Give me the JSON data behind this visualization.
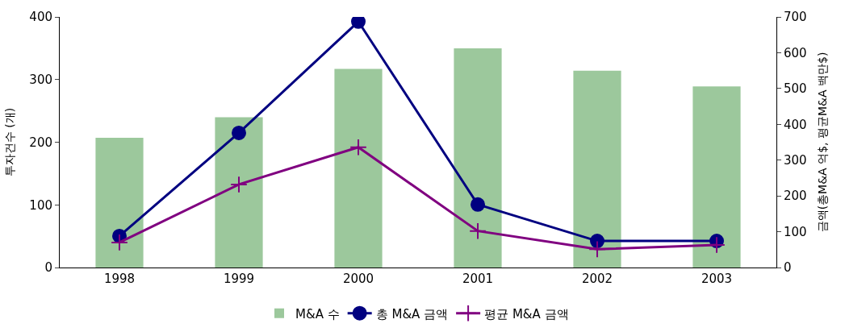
{
  "chart_data": {
    "type": "bar",
    "ylabel": "투자건수 (개)",
    "y2label": "금액(총M&A 억$, 평균M&A 백만$)",
    "categories": [
      "1998",
      "1999",
      "2000",
      "2001",
      "2002",
      "2003"
    ],
    "series": [
      {
        "name": "M&A 수",
        "color": "#9cc89c",
        "values": [
          207,
          240,
          317,
          350,
          314,
          289
        ]
      },
      {
        "name": "총 M&A 금액",
        "type": "line",
        "axis": "y2",
        "color": "#000080",
        "marker": "circle",
        "values": [
          88,
          376,
          687,
          176,
          74,
          74
        ]
      },
      {
        "name": "평균 M&A 금액",
        "type": "line",
        "axis": "y2",
        "color": "#800080",
        "marker": "cross",
        "values": [
          70,
          232,
          336,
          102,
          51,
          63
        ]
      }
    ],
    "ylim": [
      0,
      400
    ],
    "yticks": [
      0,
      100,
      200,
      300,
      400
    ],
    "y2lim": [
      0,
      700
    ],
    "y2ticks": [
      0,
      100,
      200,
      300,
      400,
      500,
      600,
      700
    ],
    "legend": "bottom"
  }
}
